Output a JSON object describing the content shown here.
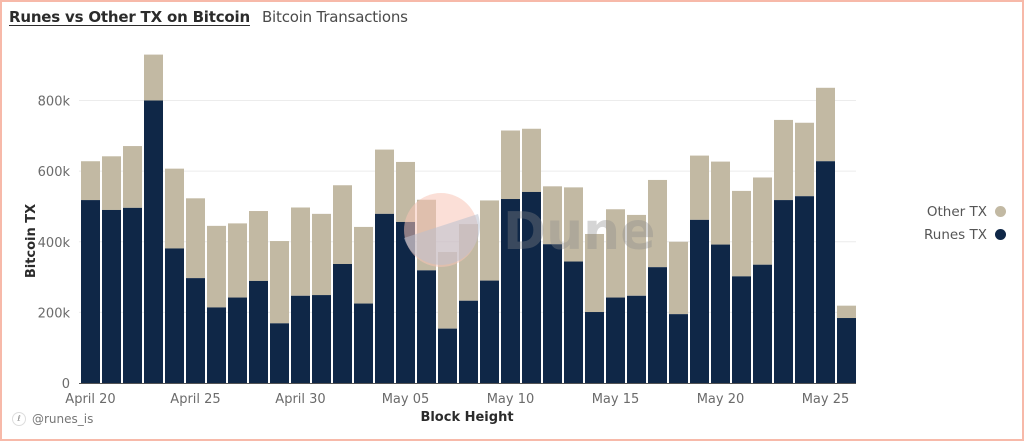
{
  "header": {
    "title": "Runes vs Other TX on Bitcoin",
    "subtitle": "Bitcoin Transactions"
  },
  "footer": {
    "icon": "user-icon",
    "handle": "@runes_is"
  },
  "watermark": {
    "text": "Dune"
  },
  "legend": {
    "items": [
      {
        "label": "Other TX",
        "color": "#c2b9a3"
      },
      {
        "label": "Runes TX",
        "color": "#0f2747"
      }
    ]
  },
  "chart_data": {
    "type": "bar",
    "stacked": true,
    "title": "Runes vs Other TX on Bitcoin",
    "subtitle": "Bitcoin Transactions",
    "xlabel": "Block Height",
    "ylabel": "Bitcoin TX",
    "ylim": [
      0,
      930000
    ],
    "y_ticks": [
      0,
      200000,
      400000,
      600000,
      800000
    ],
    "y_tick_labels": [
      "0",
      "200k",
      "400k",
      "600k",
      "800k"
    ],
    "grid": true,
    "legend_position": "right",
    "x_tick_labels": [
      {
        "index": 0,
        "label": "April 20"
      },
      {
        "index": 5,
        "label": "April 25"
      },
      {
        "index": 10,
        "label": "April 30"
      },
      {
        "index": 15,
        "label": "May 05"
      },
      {
        "index": 20,
        "label": "May 10"
      },
      {
        "index": 25,
        "label": "May 15"
      },
      {
        "index": 30,
        "label": "May 20"
      },
      {
        "index": 35,
        "label": "May 25"
      }
    ],
    "categories": [
      "April 20",
      "April 21",
      "April 22",
      "April 23",
      "April 24",
      "April 25",
      "April 26",
      "April 27",
      "April 28",
      "April 29",
      "April 30",
      "May 01",
      "May 02",
      "May 03",
      "May 04",
      "May 05",
      "May 06",
      "May 07",
      "May 08",
      "May 09",
      "May 10",
      "May 11",
      "May 12",
      "May 13",
      "May 14",
      "May 15",
      "May 16",
      "May 17",
      "May 18",
      "May 19",
      "May 20",
      "May 21",
      "May 22",
      "May 23",
      "May 24",
      "May 25",
      "May 26"
    ],
    "series": [
      {
        "name": "Runes TX",
        "color": "#0f2747",
        "values": [
          518000,
          490000,
          496000,
          800000,
          381000,
          297000,
          214000,
          242000,
          289000,
          169000,
          247000,
          249000,
          337000,
          225000,
          479000,
          456000,
          319000,
          154000,
          233000,
          290000,
          521000,
          541000,
          393000,
          344000,
          201000,
          242000,
          247000,
          328000,
          195000,
          462000,
          392000,
          302000,
          335000,
          518000,
          529000,
          628000,
          184000
        ]
      },
      {
        "name": "Other TX",
        "color": "#c2b9a3",
        "values": [
          110000,
          152000,
          175000,
          130000,
          226000,
          226000,
          231000,
          210000,
          198000,
          233000,
          250000,
          230000,
          223000,
          217000,
          182000,
          170000,
          200000,
          217000,
          217000,
          227000,
          194000,
          179000,
          164000,
          210000,
          221000,
          250000,
          229000,
          247000,
          205000,
          182000,
          235000,
          242000,
          247000,
          227000,
          208000,
          208000,
          35000
        ]
      }
    ]
  }
}
